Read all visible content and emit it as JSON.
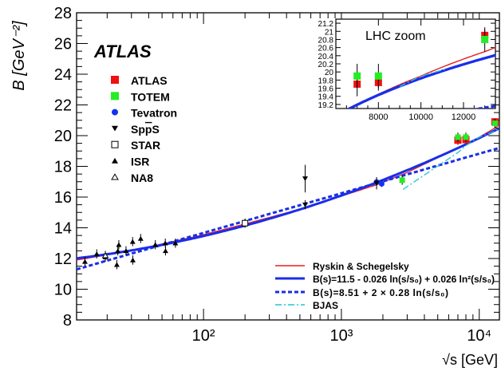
{
  "chart_data": {
    "type": "scatter",
    "watermark": "ATLAS",
    "xlabel": "√s [GeV]",
    "ylabel": "B [GeV⁻²]",
    "xscale": "log",
    "xlim": [
      12,
      14000
    ],
    "ylim": [
      8,
      28
    ],
    "x_ticks": [
      100,
      1000,
      10000
    ],
    "x_tick_labels": [
      "10²",
      "10³",
      "10⁴"
    ],
    "y_ticks": [
      8,
      10,
      12,
      14,
      16,
      18,
      20,
      22,
      24,
      26,
      28
    ],
    "legend_markers": {
      "placement": "top-left",
      "entries": [
        {
          "key": "atlas",
          "label": "ATLAS",
          "marker": "square",
          "color": "#ee1111"
        },
        {
          "key": "totem",
          "label": "TOTEM",
          "marker": "square",
          "color": "#22ee22"
        },
        {
          "key": "tevatron",
          "label": "Tevatron",
          "marker": "circle",
          "color": "#1133ee"
        },
        {
          "key": "sppbars",
          "label": "SppS",
          "marker": "triangle-down",
          "color": "#000000"
        },
        {
          "key": "star",
          "label": "STAR",
          "marker": "square-open",
          "color": "#000000"
        },
        {
          "key": "isr",
          "label": "ISR",
          "marker": "triangle-up",
          "color": "#000000"
        },
        {
          "key": "na8",
          "label": "NA8",
          "marker": "triangle-open",
          "color": "#000000"
        }
      ]
    },
    "legend_curves": {
      "placement": "bottom-right",
      "entries": [
        {
          "key": "rs",
          "label": "Ryskin & Schegelsky",
          "color": "#e8201e",
          "style": "solid"
        },
        {
          "key": "fit1",
          "label": "B(s)=11.5 - 0.026 ln(s/s₀) + 0.026 ln²(s/s₀)",
          "color": "#1a2ee8",
          "style": "solid-thick"
        },
        {
          "key": "fit2",
          "label": "B(s)=8.51 + 2 × 0.28 ln(s/s₀)",
          "color": "#1a2ee8",
          "style": "dashed"
        },
        {
          "key": "bjas",
          "label": "BJAS",
          "color": "#22c4d4",
          "style": "dashdot"
        }
      ]
    },
    "series": [
      {
        "key": "atlas",
        "points": [
          {
            "x": 7000,
            "y": 19.7,
            "err": 0.3
          },
          {
            "x": 8000,
            "y": 19.74,
            "err": 0.2
          },
          {
            "x": 13000,
            "y": 20.9,
            "err": 0.15
          }
        ]
      },
      {
        "key": "totem",
        "points": [
          {
            "x": 2760,
            "y": 17.1,
            "err": 0.3
          },
          {
            "x": 7000,
            "y": 19.9,
            "err": 0.3
          },
          {
            "x": 8000,
            "y": 19.9,
            "err": 0.3
          },
          {
            "x": 13000,
            "y": 20.8,
            "err": 0.3
          }
        ]
      },
      {
        "key": "tevatron",
        "points": [
          {
            "x": 1800,
            "y": 16.98,
            "err": 0.25
          },
          {
            "x": 1960,
            "y": 16.86,
            "err": 0.2
          }
        ]
      },
      {
        "key": "sppbars",
        "points": [
          {
            "x": 546,
            "y": 15.5,
            "err": 0.3
          },
          {
            "x": 546,
            "y": 17.2,
            "err": 0.9
          },
          {
            "x": 1800,
            "y": 16.9,
            "err": 0.4
          }
        ]
      },
      {
        "key": "star",
        "points": [
          {
            "x": 200,
            "y": 14.3,
            "err": 0.3
          }
        ]
      },
      {
        "key": "isr",
        "points": [
          {
            "x": 13.8,
            "y": 11.8,
            "err": 0.3
          },
          {
            "x": 16.8,
            "y": 12.3,
            "err": 0.3
          },
          {
            "x": 19.4,
            "y": 12.1,
            "err": 0.3
          },
          {
            "x": 23.5,
            "y": 11.6,
            "err": 0.3
          },
          {
            "x": 23.9,
            "y": 12.5,
            "err": 0.3
          },
          {
            "x": 24.3,
            "y": 12.9,
            "err": 0.3
          },
          {
            "x": 27.4,
            "y": 12.5,
            "err": 0.3
          },
          {
            "x": 30.6,
            "y": 13.1,
            "err": 0.3
          },
          {
            "x": 30.7,
            "y": 11.9,
            "err": 0.3
          },
          {
            "x": 35.0,
            "y": 13.3,
            "err": 0.3
          },
          {
            "x": 44.7,
            "y": 12.9,
            "err": 0.3
          },
          {
            "x": 52.8,
            "y": 13.0,
            "err": 0.3
          },
          {
            "x": 53.0,
            "y": 12.5,
            "err": 0.3
          },
          {
            "x": 62.5,
            "y": 13.0,
            "err": 0.3
          }
        ]
      },
      {
        "key": "na8",
        "points": [
          {
            "x": 19.4,
            "y": 12.2,
            "err": 0.3
          }
        ]
      }
    ],
    "inset": {
      "title": "LHC zoom",
      "xlim": [
        6000,
        13500
      ],
      "ylim": [
        19.1,
        21.3
      ],
      "x_ticks": [
        8000,
        10000,
        12000
      ],
      "x_tick_labels": [
        "8000",
        "10000",
        "12000"
      ],
      "y_ticks": [
        19.2,
        19.4,
        19.6,
        19.8,
        20.0,
        20.2,
        20.4,
        20.6,
        20.8,
        21.0,
        21.2
      ],
      "y_tick_labels": [
        "19.2",
        "19.4",
        "19.6",
        "19.8",
        "20",
        "20.2",
        "20.4",
        "20.6",
        "20.8",
        "21",
        "21.2"
      ]
    }
  }
}
